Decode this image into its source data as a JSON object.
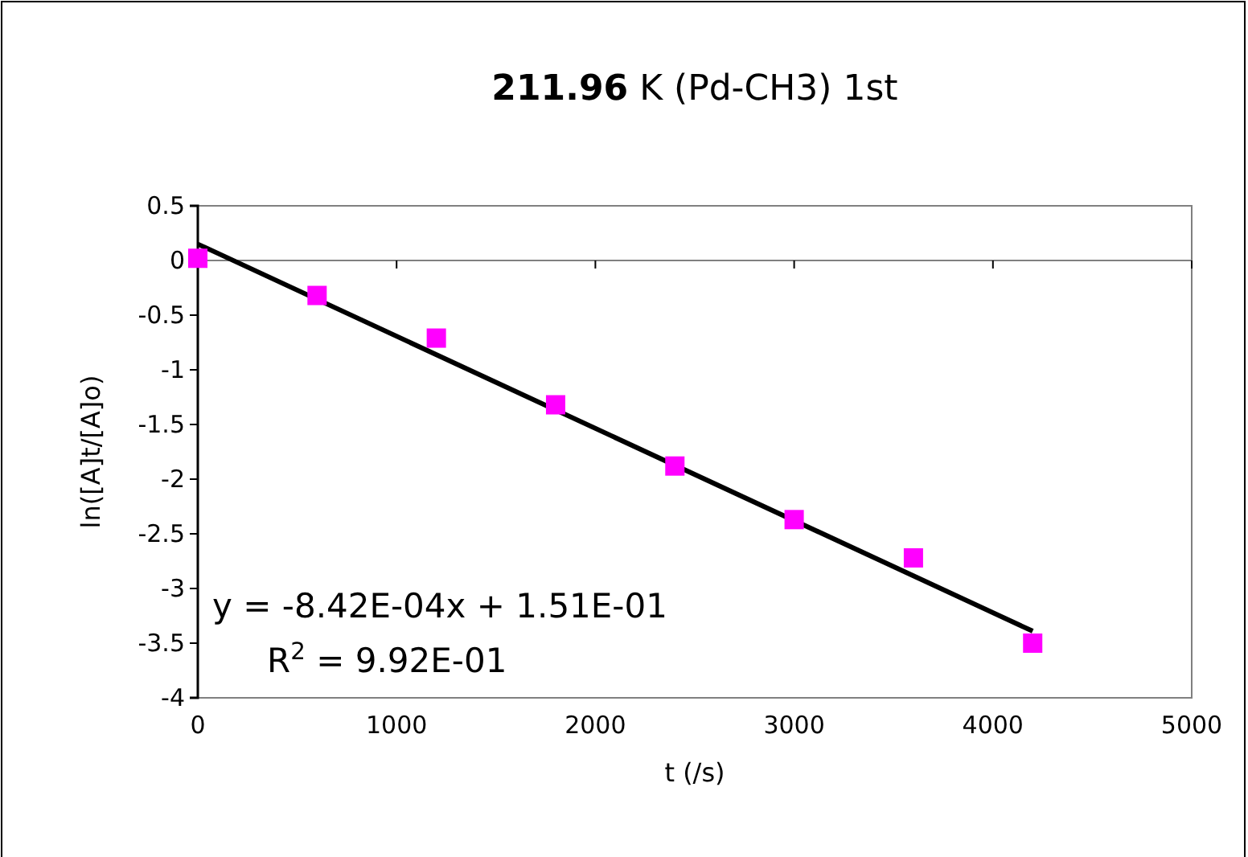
{
  "chart_data": {
    "type": "scatter",
    "title": "211.96 K (Pd-CH3) 1st",
    "xlabel": "t (/s)",
    "ylabel": "ln([A]t/[A]o)",
    "x": [
      0,
      600,
      1200,
      1800,
      2400,
      3000,
      3600,
      4200
    ],
    "series": [
      {
        "color": "#ff00ff",
        "values": [
          0.02,
          -0.32,
          -0.71,
          -1.32,
          -1.88,
          -2.37,
          -2.72,
          -3.5
        ]
      },
      {
        "type": "line",
        "color": "#000000",
        "marker": "none",
        "x": [
          0,
          4200
        ],
        "values": [
          0.15,
          -3.39
        ]
      }
    ],
    "xlim": [
      0,
      5000
    ],
    "xticks": [
      0,
      1000,
      2000,
      3000,
      4000,
      5000
    ],
    "ylim": [
      -4,
      0.5
    ],
    "yticks": [
      0.5,
      0,
      -0.5,
      -1,
      -1.5,
      -2,
      -2.5,
      -3,
      -3.5,
      -4
    ],
    "marker": "square",
    "grid": false,
    "ref_lines": [
      {
        "axis": "y",
        "value": 0,
        "color": "#808080"
      }
    ],
    "annotations": [
      "y = -8.42E-04x + 1.51E-01",
      "R$^{2}$ = 9.92E-01"
    ]
  }
}
